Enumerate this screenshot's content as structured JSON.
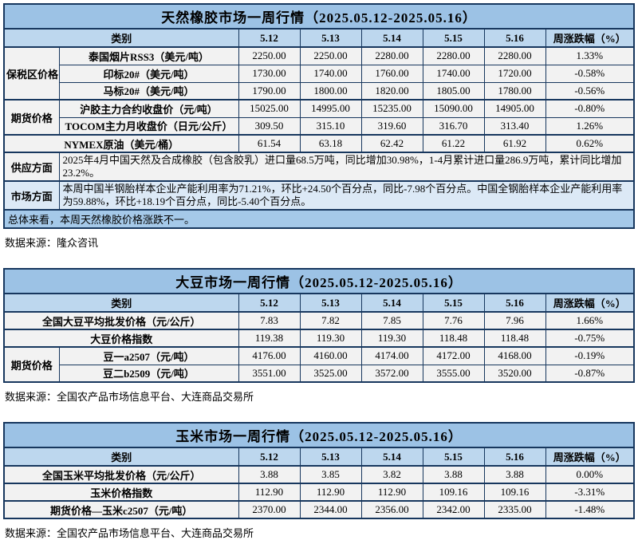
{
  "colors": {
    "title_bg": "#9CC2E5",
    "header_bg": "#BDD7EE",
    "body_bg": "#F2F2F2",
    "note_blue_bg": "#DCE9F6",
    "summary_bg": "#A5C9E9",
    "border": "#17375E"
  },
  "tables": [
    {
      "title": "天然橡胶市场一周行情（2025.05.12-2025.05.16）",
      "header": [
        "类别",
        "5.12",
        "5.13",
        "5.14",
        "5.15",
        "5.16",
        "周涨跌幅（%）"
      ],
      "rows": [
        {
          "group": "保税区价格",
          "group_rowspan": 3,
          "label": "泰国烟片RSS3（美元/吨）",
          "values": [
            "2250.00",
            "2250.00",
            "2280.00",
            "2280.00",
            "2280.00"
          ],
          "change": "1.33%"
        },
        {
          "label": "印标20#（美元/吨）",
          "values": [
            "1730.00",
            "1740.00",
            "1760.00",
            "1740.00",
            "1720.00"
          ],
          "change": "-0.58%"
        },
        {
          "label": "马标20#（美元/吨）",
          "values": [
            "1790.00",
            "1800.00",
            "1820.00",
            "1805.00",
            "1780.00"
          ],
          "change": "-0.56%"
        },
        {
          "group": "期货价格",
          "group_rowspan": 2,
          "label": "沪胶主力合约收盘价（元/吨）",
          "values": [
            "15025.00",
            "14995.00",
            "15235.00",
            "15090.00",
            "14905.00"
          ],
          "change": "-0.80%",
          "thick_top": true
        },
        {
          "label": "TOCOM主力月收盘价（日元/公斤）",
          "values": [
            "309.50",
            "315.10",
            "319.60",
            "316.70",
            "313.40"
          ],
          "change": "1.26%"
        },
        {
          "label": "NYMEX原油（美元/桶）",
          "full_label": true,
          "values": [
            "61.54",
            "63.18",
            "62.42",
            "61.22",
            "61.92"
          ],
          "change": "0.62%",
          "thick_top": true
        }
      ],
      "notes": [
        {
          "label": "供应方面",
          "style": "gray",
          "text": "2025年4月中国天然及合成橡胶（包含胶乳）进口量68.5万吨，同比增加30.98%，1-4月累计进口量286.9万吨，累计同比增加23.2%。"
        },
        {
          "label": "市场方面",
          "style": "blue",
          "text": "本周中国半钢胎样本企业产能利用率为71.21%，环比+24.50个百分点，同比-7.98个百分点。中国全钢胎样本企业产能利用率为59.88%，环比+18.19个百分点，同比-5.40个百分点。"
        }
      ],
      "summary": "总体来看，本周天然橡胶价格涨跌不一。",
      "source": "数据来源：隆众咨讯"
    },
    {
      "title": "大豆市场一周行情（2025.05.12-2025.05.16）",
      "header": [
        "类别",
        "5.12",
        "5.13",
        "5.14",
        "5.15",
        "5.16",
        "周涨跌幅（%）"
      ],
      "rows": [
        {
          "label": "全国大豆平均批发价格（元/公斤）",
          "full_label": true,
          "values": [
            "7.83",
            "7.82",
            "7.85",
            "7.76",
            "7.96"
          ],
          "change": "1.66%"
        },
        {
          "label": "大豆价格指数",
          "full_label": true,
          "values": [
            "119.38",
            "119.30",
            "119.30",
            "118.48",
            "118.48"
          ],
          "change": "-0.75%",
          "thick_top": true
        },
        {
          "group": "期货价格",
          "group_rowspan": 2,
          "label": "豆一a2507（元/吨）",
          "values": [
            "4176.00",
            "4160.00",
            "4174.00",
            "4172.00",
            "4168.00"
          ],
          "change": "-0.19%",
          "thick_top": true
        },
        {
          "label": "豆二b2509（元/吨）",
          "values": [
            "3551.00",
            "3525.00",
            "3572.00",
            "3555.00",
            "3520.00"
          ],
          "change": "-0.87%"
        }
      ],
      "notes": [],
      "summary": "",
      "source": "数据来源：全国农产品市场信息平台、大连商品交易所"
    },
    {
      "title": "玉米市场一周行情（2025.05.12-2025.05.16）",
      "header": [
        "类别",
        "5.12",
        "5.13",
        "5.14",
        "5.15",
        "5.16",
        "周涨跌幅（%）"
      ],
      "rows": [
        {
          "label": "全国玉米平均批发价格（元/公斤）",
          "full_label": true,
          "values": [
            "3.88",
            "3.85",
            "3.82",
            "3.88",
            "3.88"
          ],
          "change": "0.00%"
        },
        {
          "label": "玉米价格指数",
          "full_label": true,
          "values": [
            "112.90",
            "112.90",
            "112.90",
            "109.16",
            "109.16"
          ],
          "change": "-3.31%",
          "thick_top": true
        },
        {
          "label": "期货价格—玉米c2507（元/吨）",
          "full_label": true,
          "values": [
            "2370.00",
            "2344.00",
            "2356.00",
            "2342.00",
            "2335.00"
          ],
          "change": "-1.48%",
          "thick_top": true
        }
      ],
      "notes": [],
      "summary": "",
      "source": "数据来源：全国农产品市场信息平台、大连商品交易所"
    }
  ]
}
